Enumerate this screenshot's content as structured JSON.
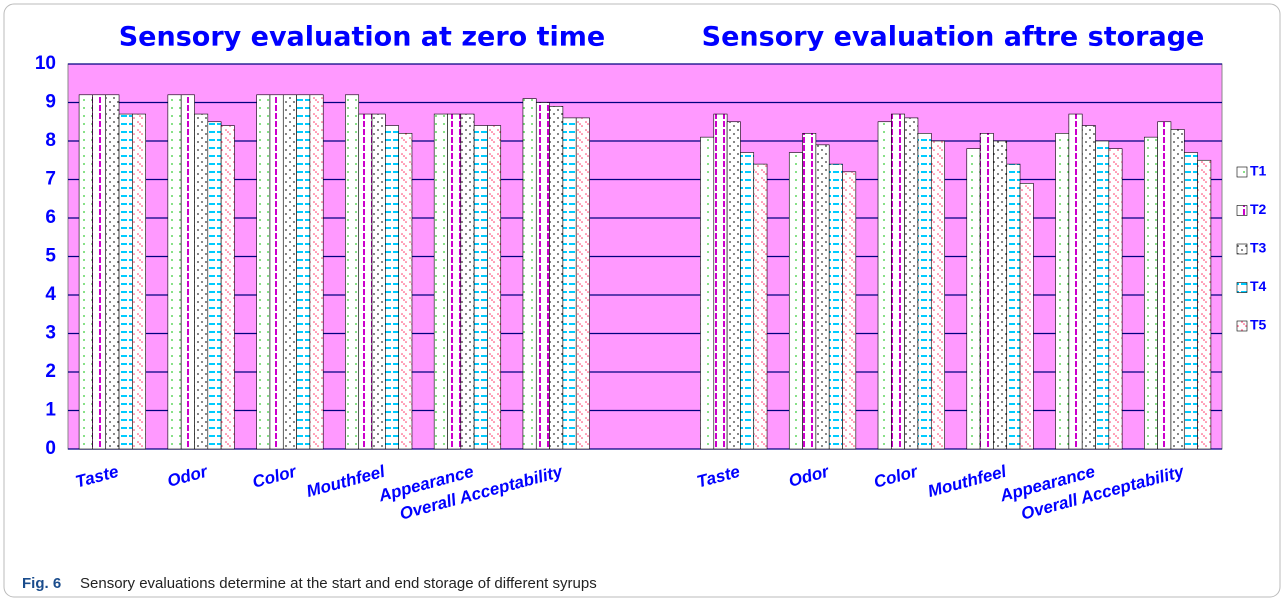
{
  "chart_data": {
    "type": "bar",
    "titles": [
      "Sensory evaluation at zero time",
      "Sensory evaluation aftre storage"
    ],
    "categories": [
      "Taste",
      "Odor",
      "Color",
      "Mouthfeel",
      "Appearance",
      "Overall Acceptability",
      null,
      "Taste",
      "Odor",
      "Color",
      "Mouthfeel",
      "Appearance",
      "Overall Acceptability"
    ],
    "series": [
      {
        "name": "T1",
        "color": "#33cc33",
        "values": [
          9.2,
          9.2,
          9.2,
          9.2,
          8.7,
          9.1,
          null,
          8.1,
          7.7,
          8.5,
          7.8,
          8.2,
          8.1
        ]
      },
      {
        "name": "T2",
        "color": "#cc00cc",
        "values": [
          9.2,
          9.2,
          9.2,
          8.7,
          8.7,
          9.0,
          null,
          8.7,
          8.2,
          8.7,
          8.2,
          8.7,
          8.5
        ]
      },
      {
        "name": "T3",
        "color": "#333333",
        "values": [
          9.2,
          8.7,
          9.2,
          8.7,
          8.7,
          8.9,
          null,
          8.5,
          7.9,
          8.6,
          8.0,
          8.4,
          8.3
        ]
      },
      {
        "name": "T4",
        "color": "#00ccff",
        "values": [
          8.7,
          8.5,
          9.2,
          8.4,
          8.4,
          8.6,
          null,
          7.7,
          7.4,
          8.2,
          7.4,
          8.0,
          7.7
        ]
      },
      {
        "name": "T5",
        "color": "#ff3366",
        "values": [
          8.7,
          8.4,
          9.2,
          8.2,
          8.4,
          8.6,
          null,
          7.4,
          7.2,
          8.0,
          6.9,
          7.8,
          7.5
        ]
      }
    ],
    "ylim": [
      0,
      10
    ],
    "yticks": [
      0,
      1,
      2,
      3,
      4,
      5,
      6,
      7,
      8,
      9,
      10
    ],
    "grid": true,
    "plot_background": "#ff99ff",
    "legend": "right"
  },
  "caption": {
    "label": "Fig. 6",
    "text": "Sensory evaluations determine at the start and end storage of different syrups"
  }
}
